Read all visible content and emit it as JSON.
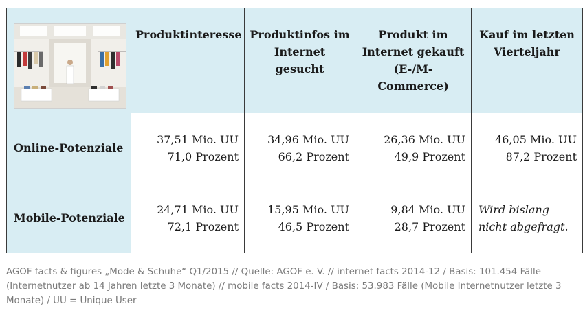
{
  "table": {
    "columns": [
      "Produktinteresse",
      "Produktinfos im Internet gesucht",
      "Produkt im Internet gekauft (E-/M-Commerce)",
      "Kauf im letzten Vierteljahr"
    ],
    "column_lines": [
      [
        "Produktinteresse"
      ],
      [
        "Produktinfos im",
        "Internet gesucht"
      ],
      [
        "Produkt im",
        "Internet gekauft",
        "(E-/M-",
        "Commerce)"
      ],
      [
        "Kauf im letzten",
        "Vierteljahr"
      ]
    ],
    "rows": [
      {
        "label": "Online-Potenziale",
        "cells": [
          [
            "37,51 Mio. UU",
            "71,0 Prozent"
          ],
          [
            "34,96 Mio. UU",
            "66,2 Prozent"
          ],
          [
            "26,36 Mio. UU",
            "49,9 Prozent"
          ],
          [
            "46,05 Mio. UU",
            "87,2 Prozent"
          ]
        ]
      },
      {
        "label": "Mobile-Potenziale",
        "cells": [
          [
            "24,71 Mio. UU",
            "72,1 Prozent"
          ],
          [
            "15,95 Mio. UU",
            "46,5 Prozent"
          ],
          [
            "9,84 Mio. UU",
            "28,7 Prozent"
          ],
          [
            "Wird bislang",
            "nicht abgefragt."
          ]
        ]
      }
    ]
  },
  "footnote": "AGOF facts & figures „Mode & Schuhe“ Q1/2015 // Quelle: AGOF e. V. // internet facts 2014-12 / Basis: 101.454 Fälle (Internetnutzer ab 14 Jahren letzte 3 Monate) // mobile facts 2014-IV / Basis: 53.983 Fälle (Mobile Internetnutzer letzte 3 Monate) / UU = Unique User",
  "colors": {
    "cell_blue": "#d8edf3",
    "border": "#3a3a3a",
    "footnote_gray": "#7a7a7a"
  }
}
